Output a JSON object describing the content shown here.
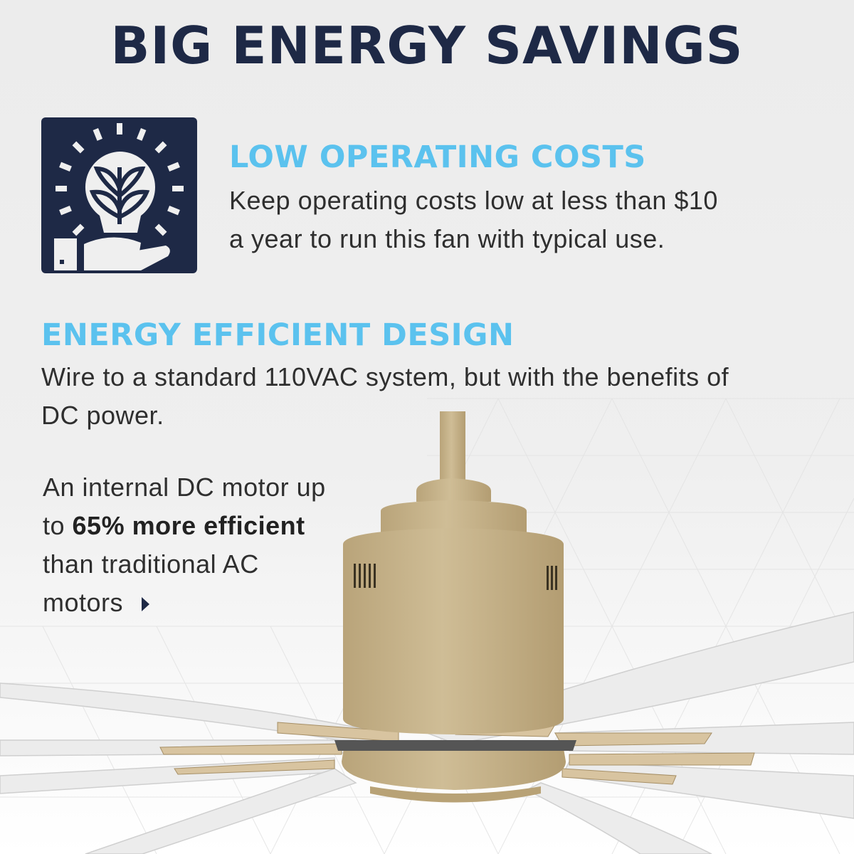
{
  "title": "BIG ENERGY SAVINGS",
  "section1": {
    "icon": "lightbulb-plant-hand-icon",
    "heading": "LOW OPERATING COSTS",
    "line1": "Keep operating costs low at less than $10",
    "line2": "a year to run this fan with typical use."
  },
  "section2": {
    "heading": "ENERGY EFFICIENT DESIGN",
    "line1": "Wire to a standard 110VAC system, but with the benefits of",
    "line2": "DC power."
  },
  "motor_note": {
    "line1": "An internal DC motor up",
    "line2_prefix": "to ",
    "line2_bold": "65% more efficient",
    "line3": "than traditional AC",
    "line4": "motors",
    "arrow_icon": "caret-right-icon"
  },
  "colors": {
    "navy": "#1e2946",
    "accent": "#5bc2ee",
    "fan_body": "#c8b58e",
    "blade": "#f2f2f2"
  }
}
